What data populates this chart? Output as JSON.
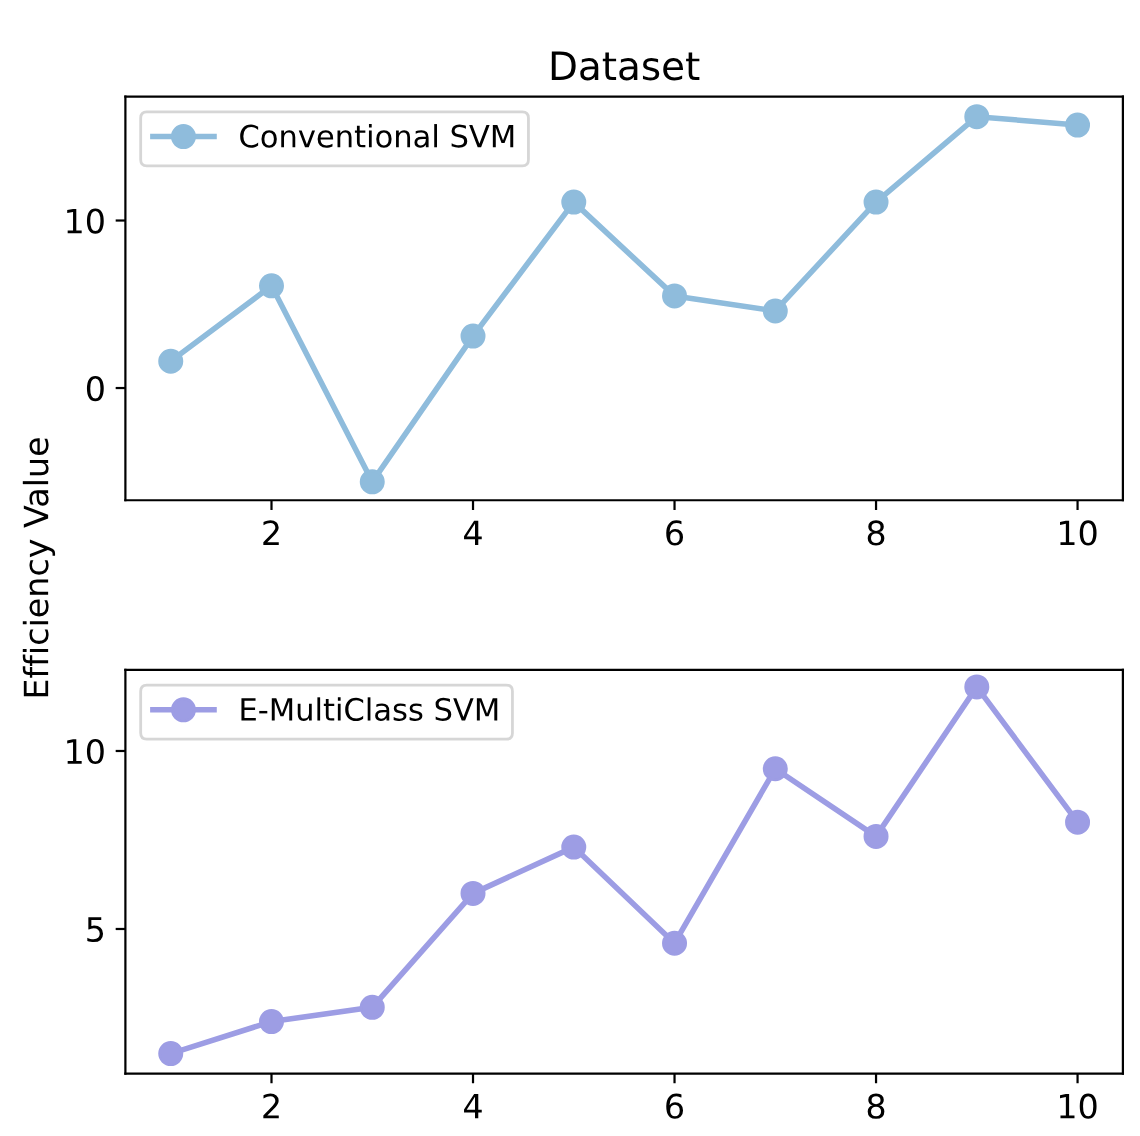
{
  "chart_data": [
    {
      "type": "line",
      "title": "Dataset",
      "ylabel": "Efficiency Value",
      "x": [
        1,
        2,
        3,
        4,
        5,
        6,
        7,
        8,
        9,
        10
      ],
      "xlim": [
        0.55,
        10.45
      ],
      "xticks": [
        2,
        4,
        6,
        8,
        10
      ],
      "ylim": [
        -6.7,
        17.4
      ],
      "yticks": [
        0,
        10
      ],
      "marker": "circle",
      "line_style": "solid",
      "grid": false,
      "legend": "top left",
      "series": [
        {
          "name": "Conventional SVM",
          "color": "#8fbcdc",
          "values": [
            1.6,
            6.1,
            -5.6,
            3.1,
            11.1,
            5.5,
            4.6,
            11.1,
            16.2,
            15.7
          ]
        }
      ]
    },
    {
      "type": "line",
      "x": [
        1,
        2,
        3,
        4,
        5,
        6,
        7,
        8,
        9,
        10
      ],
      "xlim": [
        0.55,
        10.45
      ],
      "xticks": [
        2,
        4,
        6,
        8,
        10
      ],
      "ylim": [
        0.94,
        12.28
      ],
      "yticks": [
        5,
        10
      ],
      "marker": "circle",
      "line_style": "solid",
      "grid": false,
      "legend": "top left",
      "series": [
        {
          "name": "E-MultiClass SVM",
          "color": "#9d9de4",
          "values": [
            1.5,
            2.4,
            2.8,
            6.0,
            7.3,
            4.6,
            9.5,
            7.6,
            11.8,
            8.0
          ]
        }
      ]
    }
  ]
}
